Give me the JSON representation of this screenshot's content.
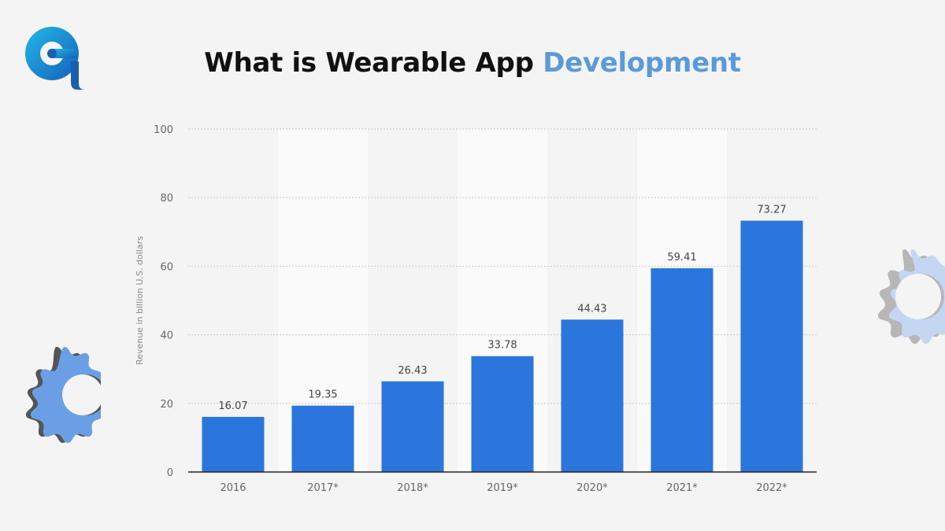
{
  "header": {
    "title_main": "What is Wearable App",
    "title_accent": "Development",
    "accent_color": "#5b9ad9"
  },
  "icons": {
    "logo": "brand-logo-icon",
    "left_decoration": "gear-icon",
    "right_decoration": "gear-icon"
  },
  "chart_data": {
    "type": "bar",
    "categories": [
      "2016",
      "2017*",
      "2018*",
      "2019*",
      "2020*",
      "2021*",
      "2022*"
    ],
    "values": [
      16.07,
      19.35,
      26.43,
      33.78,
      44.43,
      59.41,
      73.27
    ],
    "value_labels": [
      "16.07",
      "19.35",
      "26.43",
      "33.78",
      "44.43",
      "59.41",
      "73.27"
    ],
    "title": "",
    "xlabel": "",
    "ylabel": "Revenue in billion U.S. dollars",
    "ylim": [
      0,
      100
    ],
    "yticks": [
      0,
      20,
      40,
      60,
      80,
      100
    ],
    "grid": true,
    "bar_color": "#2b76dc"
  }
}
